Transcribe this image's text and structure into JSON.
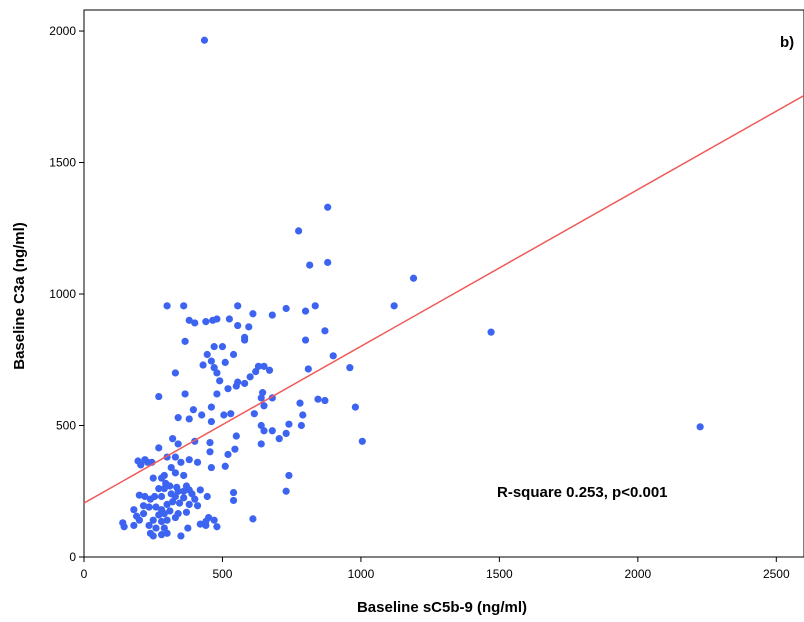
{
  "chart_data": {
    "type": "scatter",
    "title": "",
    "xlabel": "Baseline sC5b-9 (ng/ml)",
    "ylabel": "Baseline C3a (ng/ml)",
    "xlim": [
      0,
      2600
    ],
    "ylim": [
      0,
      2080
    ],
    "xticks": [
      "0",
      "500",
      "1000",
      "1500",
      "2000",
      "2500"
    ],
    "yticks": [
      "0",
      "500",
      "1000",
      "1500",
      "2000"
    ],
    "panel_label": "b)",
    "annotation": "R-square 0.253, p<0.001",
    "grid": false,
    "colors": {
      "points": "#3d64f0",
      "fit_line": "#f05a5a"
    },
    "fit_line": {
      "x": [
        0,
        2600
      ],
      "y": [
        205,
        1755
      ]
    },
    "points": [
      [
        435,
        1965
      ],
      [
        880,
        1330
      ],
      [
        775,
        1240
      ],
      [
        880,
        1120
      ],
      [
        815,
        1110
      ],
      [
        1190,
        1060
      ],
      [
        1120,
        955
      ],
      [
        1470,
        855
      ],
      [
        2225,
        495
      ],
      [
        300,
        955
      ],
      [
        360,
        955
      ],
      [
        555,
        955
      ],
      [
        730,
        945
      ],
      [
        835,
        955
      ],
      [
        800,
        935
      ],
      [
        610,
        925
      ],
      [
        680,
        920
      ],
      [
        380,
        900
      ],
      [
        400,
        890
      ],
      [
        440,
        895
      ],
      [
        465,
        900
      ],
      [
        480,
        905
      ],
      [
        525,
        905
      ],
      [
        555,
        880
      ],
      [
        595,
        875
      ],
      [
        870,
        860
      ],
      [
        365,
        820
      ],
      [
        470,
        800
      ],
      [
        500,
        800
      ],
      [
        580,
        825
      ],
      [
        800,
        825
      ],
      [
        580,
        835
      ],
      [
        445,
        770
      ],
      [
        540,
        770
      ],
      [
        900,
        765
      ],
      [
        430,
        730
      ],
      [
        460,
        745
      ],
      [
        470,
        720
      ],
      [
        510,
        740
      ],
      [
        630,
        725
      ],
      [
        650,
        725
      ],
      [
        670,
        710
      ],
      [
        960,
        720
      ],
      [
        810,
        715
      ],
      [
        330,
        700
      ],
      [
        480,
        700
      ],
      [
        490,
        670
      ],
      [
        600,
        685
      ],
      [
        555,
        665
      ],
      [
        620,
        705
      ],
      [
        580,
        660
      ],
      [
        520,
        640
      ],
      [
        550,
        650
      ],
      [
        645,
        625
      ],
      [
        365,
        620
      ],
      [
        480,
        620
      ],
      [
        640,
        605
      ],
      [
        680,
        605
      ],
      [
        270,
        610
      ],
      [
        845,
        600
      ],
      [
        870,
        595
      ],
      [
        780,
        585
      ],
      [
        980,
        570
      ],
      [
        460,
        570
      ],
      [
        530,
        545
      ],
      [
        650,
        575
      ],
      [
        395,
        560
      ],
      [
        425,
        540
      ],
      [
        505,
        540
      ],
      [
        615,
        545
      ],
      [
        790,
        540
      ],
      [
        340,
        530
      ],
      [
        380,
        525
      ],
      [
        460,
        515
      ],
      [
        640,
        500
      ],
      [
        740,
        505
      ],
      [
        730,
        470
      ],
      [
        650,
        480
      ],
      [
        680,
        480
      ],
      [
        705,
        450
      ],
      [
        785,
        500
      ],
      [
        550,
        460
      ],
      [
        320,
        450
      ],
      [
        340,
        430
      ],
      [
        400,
        440
      ],
      [
        455,
        435
      ],
      [
        1005,
        440
      ],
      [
        270,
        415
      ],
      [
        230,
        360
      ],
      [
        455,
        400
      ],
      [
        520,
        390
      ],
      [
        545,
        410
      ],
      [
        640,
        430
      ],
      [
        300,
        380
      ],
      [
        330,
        380
      ],
      [
        350,
        360
      ],
      [
        380,
        370
      ],
      [
        410,
        360
      ],
      [
        510,
        345
      ],
      [
        460,
        340
      ],
      [
        195,
        365
      ],
      [
        205,
        350
      ],
      [
        220,
        370
      ],
      [
        245,
        360
      ],
      [
        315,
        340
      ],
      [
        330,
        320
      ],
      [
        360,
        310
      ],
      [
        250,
        300
      ],
      [
        280,
        300
      ],
      [
        290,
        310
      ],
      [
        295,
        280
      ],
      [
        310,
        270
      ],
      [
        335,
        265
      ],
      [
        370,
        270
      ],
      [
        740,
        310
      ],
      [
        270,
        260
      ],
      [
        290,
        260
      ],
      [
        315,
        240
      ],
      [
        340,
        250
      ],
      [
        360,
        250
      ],
      [
        380,
        255
      ],
      [
        390,
        240
      ],
      [
        420,
        255
      ],
      [
        445,
        230
      ],
      [
        540,
        245
      ],
      [
        730,
        250
      ],
      [
        200,
        235
      ],
      [
        220,
        230
      ],
      [
        240,
        220
      ],
      [
        255,
        230
      ],
      [
        280,
        230
      ],
      [
        330,
        230
      ],
      [
        360,
        225
      ],
      [
        400,
        220
      ],
      [
        300,
        200
      ],
      [
        320,
        210
      ],
      [
        345,
        205
      ],
      [
        380,
        200
      ],
      [
        410,
        195
      ],
      [
        180,
        180
      ],
      [
        215,
        195
      ],
      [
        235,
        190
      ],
      [
        260,
        190
      ],
      [
        280,
        180
      ],
      [
        310,
        175
      ],
      [
        340,
        165
      ],
      [
        370,
        170
      ],
      [
        190,
        155
      ],
      [
        215,
        165
      ],
      [
        270,
        160
      ],
      [
        290,
        165
      ],
      [
        330,
        150
      ],
      [
        440,
        135
      ],
      [
        470,
        140
      ],
      [
        200,
        140
      ],
      [
        250,
        140
      ],
      [
        280,
        135
      ],
      [
        300,
        140
      ],
      [
        420,
        125
      ],
      [
        440,
        120
      ],
      [
        140,
        130
      ],
      [
        145,
        115
      ],
      [
        180,
        120
      ],
      [
        235,
        120
      ],
      [
        260,
        110
      ],
      [
        290,
        110
      ],
      [
        375,
        110
      ],
      [
        480,
        115
      ],
      [
        240,
        90
      ],
      [
        250,
        80
      ],
      [
        280,
        85
      ],
      [
        300,
        90
      ],
      [
        350,
        80
      ],
      [
        610,
        145
      ],
      [
        540,
        215
      ],
      [
        450,
        150
      ]
    ]
  }
}
